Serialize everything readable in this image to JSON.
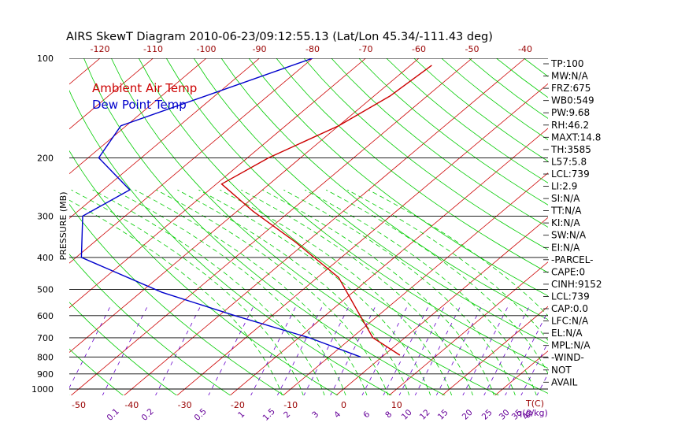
{
  "chart_data": {
    "type": "line",
    "title": "AIRS SkewT Diagram 2010-06-23/09:12:55.13 (Lat/Lon 45.34/-111.43 deg)",
    "ylabel": "PRESSURE (MB)",
    "y_scale": "log",
    "y_inverted": true,
    "ylim": [
      1000,
      100
    ],
    "pressure_ticks": [
      100,
      200,
      300,
      400,
      500,
      600,
      700,
      800,
      900,
      1000
    ],
    "temp_ticks_top": [
      -120,
      -110,
      -100,
      -90,
      -80,
      -70,
      -60,
      -50,
      -40
    ],
    "temp_ticks_bottom": [
      -50,
      -40,
      -30,
      -20,
      -10,
      0,
      10
    ],
    "bottom_temp_unit": "T(C)",
    "mixing_ratio_ticks": [
      "0.1",
      "0.2",
      "0.5",
      "1",
      "1.5",
      "2",
      "3",
      "4",
      "6",
      "8",
      "10",
      "12",
      "15",
      "20",
      "25",
      "30",
      "35",
      "40"
    ],
    "mixing_ratio_unit": "q(g/kg)",
    "legend": [
      "Ambient Air Temp",
      "Dew Point Temp"
    ],
    "legend_position": "top-left",
    "series": [
      {
        "name": "Ambient Air Temp",
        "color": "#cc0000",
        "points": [
          {
            "p": 105,
            "t": -56
          },
          {
            "p": 130,
            "t": -57
          },
          {
            "p": 160,
            "t": -60
          },
          {
            "p": 200,
            "t": -66
          },
          {
            "p": 240,
            "t": -69
          },
          {
            "p": 290,
            "t": -57
          },
          {
            "p": 360,
            "t": -42
          },
          {
            "p": 460,
            "t": -26
          },
          {
            "p": 580,
            "t": -15
          },
          {
            "p": 700,
            "t": -6
          },
          {
            "p": 790,
            "t": 3
          }
        ]
      },
      {
        "name": "Dew Point Temp",
        "color": "#0000cc",
        "points": [
          {
            "p": 100,
            "t": -80
          },
          {
            "p": 160,
            "t": -101
          },
          {
            "p": 200,
            "t": -98
          },
          {
            "p": 250,
            "t": -85
          },
          {
            "p": 300,
            "t": -88
          },
          {
            "p": 400,
            "t": -79
          },
          {
            "p": 510,
            "t": -56
          },
          {
            "p": 600,
            "t": -37
          },
          {
            "p": 700,
            "t": -18
          },
          {
            "p": 800,
            "t": -4
          }
        ]
      }
    ]
  },
  "indices": [
    "TP:100",
    "MW:N/A",
    "FRZ:675",
    "WB0:549",
    "PW:9.68",
    "RH:46.2",
    "MAXT:14.8",
    "TH:3585",
    "L57:5.8",
    "LCL:739",
    "LI:2.9",
    "SI:N/A",
    "TT:N/A",
    "KI:N/A",
    "SW:N/A",
    "EI:N/A",
    "-PARCEL-",
    "CAPE:0",
    "CINH:9152",
    "LCL:739",
    "CAP:0.0",
    "LFC:N/A",
    "EL:N/A",
    "MPL:N/A",
    "-WIND-",
    "NOT",
    "AVAIL"
  ],
  "colors": {
    "isotherm": "#cc0000",
    "dry_adiabat": "#00cc00",
    "moist_adiabat": "#00cc00",
    "mixing_ratio": "#6600cc",
    "isobar": "#000000",
    "mixing_label": "#660099",
    "bottom_temp_label": "#990000"
  }
}
